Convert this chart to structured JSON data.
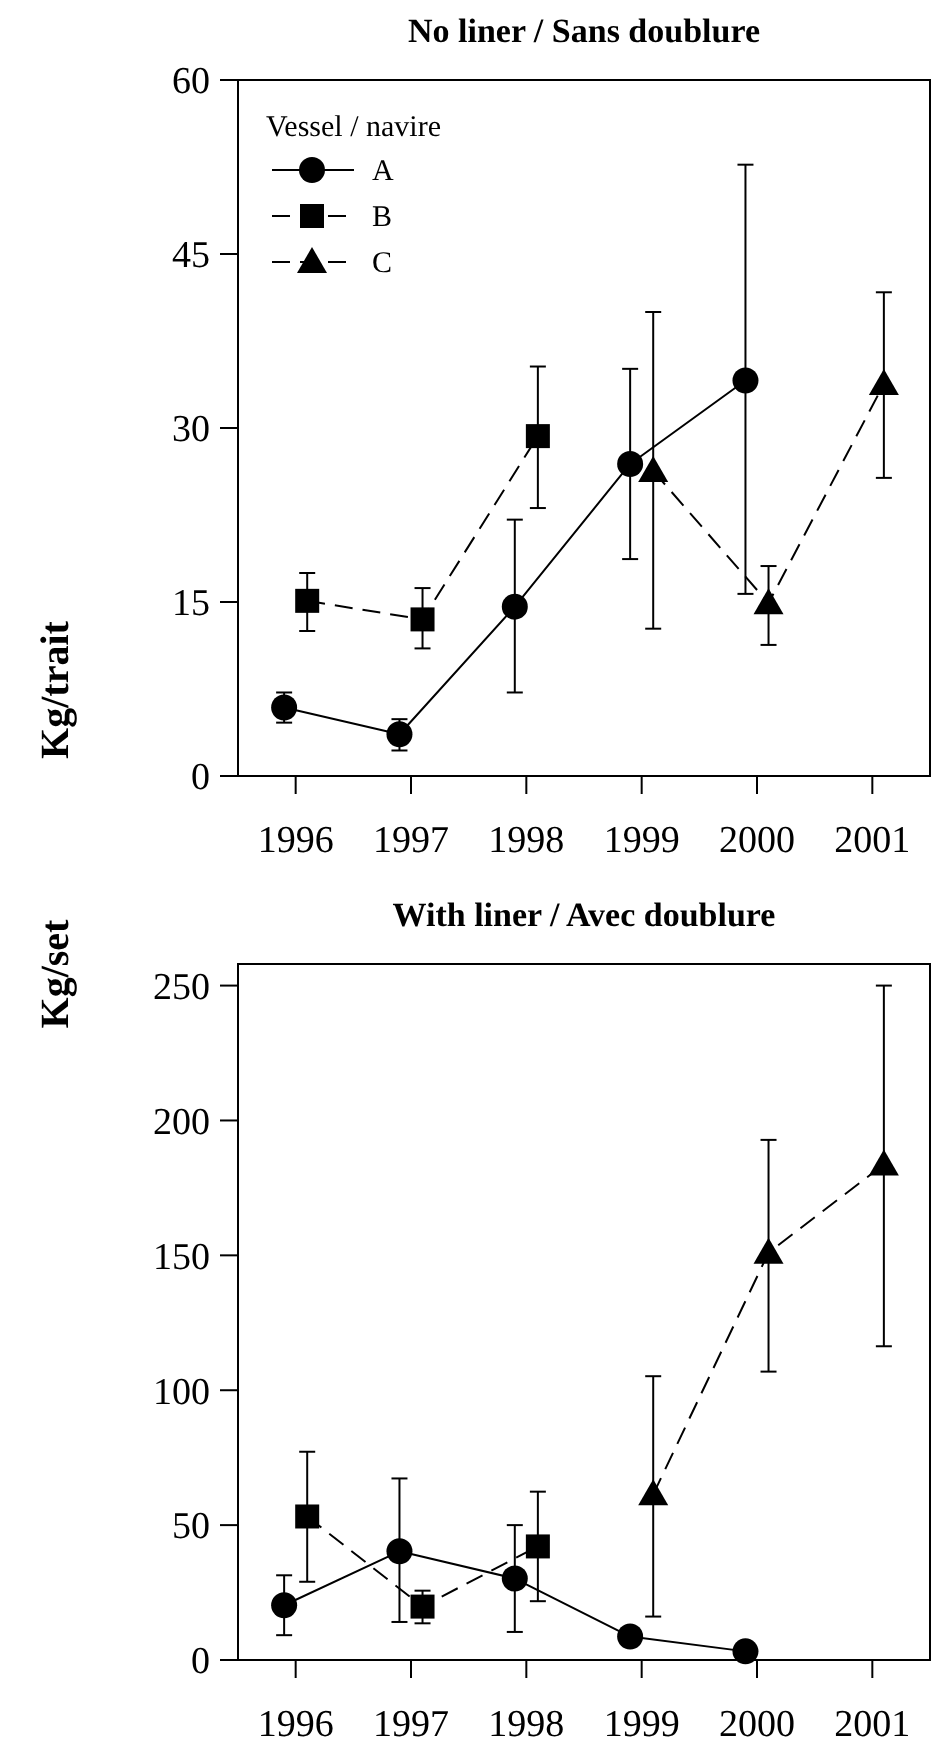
{
  "chart_data": [
    {
      "type": "line",
      "title": "No liner / Sans doublure",
      "ylabel": "Kg/trait",
      "xlim": [
        1995.5,
        2001.5
      ],
      "xticks": [
        1996,
        1997,
        1998,
        1999,
        2000,
        2001
      ],
      "ylim": [
        0,
        60
      ],
      "yticks": [
        0,
        15,
        30,
        45,
        60
      ],
      "legend": "top left",
      "legend_title": "Vessel / navire",
      "grid": false,
      "series": [
        {
          "name": "A",
          "color": "#000000",
          "marker": "circle",
          "line_style": "solid",
          "x": [
            1995.9,
            1996.9,
            1997.9,
            1998.9,
            1999.9
          ],
          "values": [
            5.9,
            3.6,
            14.6,
            26.9,
            34.1
          ],
          "errors": [
            [
              4.6,
              7.2
            ],
            [
              2.2,
              4.9
            ],
            [
              7.2,
              22.1
            ],
            [
              18.7,
              35.1
            ],
            [
              15.7,
              52.7
            ]
          ]
        },
        {
          "name": "B",
          "color": "#000000",
          "marker": "square",
          "line_style": "dashed",
          "x": [
            1996.1,
            1997.1,
            1998.1
          ],
          "values": [
            15.1,
            13.5,
            29.3
          ],
          "errors": [
            [
              12.5,
              17.5
            ],
            [
              11.0,
              16.2
            ],
            [
              23.1,
              35.3
            ]
          ]
        },
        {
          "name": "C",
          "color": "#000000",
          "marker": "triangle",
          "line_style": "dashed",
          "x": [
            1999.1,
            2000.1,
            2001.1
          ],
          "values": [
            26.3,
            14.9,
            33.8
          ],
          "errors": [
            [
              12.7,
              40.0
            ],
            [
              11.3,
              18.1
            ],
            [
              25.7,
              41.7
            ]
          ]
        }
      ]
    },
    {
      "type": "line",
      "title": "With liner / Avec doublure",
      "ylabel": "Kg/set",
      "xlim": [
        1995.5,
        2001.5
      ],
      "xticks": [
        1996,
        1997,
        1998,
        1999,
        2000,
        2001
      ],
      "ylim": [
        0,
        258
      ],
      "yticks": [
        0,
        50,
        100,
        150,
        200,
        250
      ],
      "legend": false,
      "grid": false,
      "series": [
        {
          "color": "#000000",
          "marker": "circle",
          "line_style": "solid",
          "x": [
            1995.9,
            1996.9,
            1997.9,
            1998.9,
            1999.9
          ],
          "values": [
            20.3,
            40.3,
            30.2,
            8.7,
            3.2
          ],
          "errors": [
            [
              9.2,
              31.4
            ],
            [
              14.1,
              67.3
            ],
            [
              10.4,
              50
            ],
            null,
            null
          ]
        },
        {
          "color": "#000000",
          "marker": "square",
          "line_style": "dashed",
          "x": [
            1996.1,
            1997.1,
            1998.1
          ],
          "values": [
            53.2,
            19.8,
            42.1
          ],
          "errors": [
            [
              29,
              77.2
            ],
            [
              13.6,
              25.7
            ],
            [
              21.8,
              62.4
            ]
          ]
        },
        {
          "color": "#000000",
          "marker": "triangle",
          "line_style": "dashed",
          "x": [
            1999.1,
            2000.1,
            2001.1
          ],
          "values": [
            61.4,
            151,
            183.7
          ],
          "errors": [
            [
              16.1,
              105.2
            ],
            [
              106.9,
              192.8
            ],
            [
              116.3,
              250
            ]
          ]
        }
      ]
    }
  ]
}
